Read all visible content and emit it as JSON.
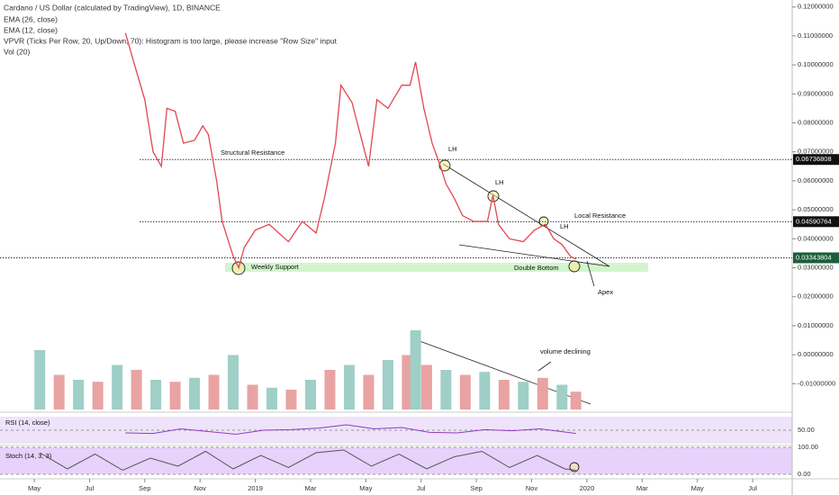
{
  "header": [
    "Cardano / US Dollar (calculated by TradingView), 1D, BINANCE",
    "EMA (26, close)",
    "EMA (12, close)",
    "VPVR (Ticks Per Row, 20, Up/Down, 70): Histogram is too large, please increase \"Row Size\" input",
    "Vol (20)"
  ],
  "chart_data": {
    "type": "line",
    "x": [
      3.3,
      3.6,
      4.0,
      4.3,
      4.6,
      4.8,
      5.1,
      5.4,
      5.8,
      6.1,
      6.3,
      6.6,
      6.8,
      7.2,
      7.4,
      7.6,
      8.0,
      8.5,
      9.2,
      9.7,
      10.2,
      10.5,
      10.9,
      11.1,
      11.5,
      11.8,
      12.1,
      12.4,
      12.8,
      13.3,
      13.6,
      13.8,
      14.1,
      14.4,
      14.7,
      14.9,
      15.2,
      15.5,
      15.9,
      16.4,
      16.6,
      16.8,
      17.2,
      17.7,
      18.1,
      18.5,
      18.8,
      19.1,
      19.4,
      19.6
    ],
    "series": [
      {
        "color": "#e0484f",
        "values": [
          0.111,
          0.101,
          0.088,
          0.07,
          0.065,
          0.085,
          0.084,
          0.073,
          0.074,
          0.079,
          0.076,
          0.06,
          0.046,
          0.034,
          0.03,
          0.037,
          0.043,
          0.045,
          0.039,
          0.046,
          0.042,
          0.054,
          0.073,
          0.093,
          0.087,
          0.076,
          0.065,
          0.088,
          0.085,
          0.093,
          0.093,
          0.101,
          0.085,
          0.073,
          0.065,
          0.059,
          0.054,
          0.048,
          0.046,
          0.046,
          0.055,
          0.045,
          0.04,
          0.039,
          0.043,
          0.045,
          0.04,
          0.038,
          0.034,
          0.033
        ]
      }
    ],
    "xlim": [
      -1.24,
      27.43
    ],
    "xticks": [
      {
        "value": 0,
        "label": "May"
      },
      {
        "value": 2,
        "label": "Jul"
      },
      {
        "value": 4,
        "label": "Sep"
      },
      {
        "value": 6,
        "label": "Nov"
      },
      {
        "value": 8,
        "label": "2019"
      },
      {
        "value": 10,
        "label": "Mar"
      },
      {
        "value": 12,
        "label": "May"
      },
      {
        "value": 14,
        "label": "Jul"
      },
      {
        "value": 16,
        "label": "Sep"
      },
      {
        "value": 18,
        "label": "Nov"
      },
      {
        "value": 20,
        "label": "2020"
      },
      {
        "value": 22,
        "label": "Mar"
      },
      {
        "value": 24,
        "label": "May"
      },
      {
        "value": 26,
        "label": "Jul"
      }
    ],
    "ylim": [
      -0.0189,
      0.1224
    ],
    "yticks": [
      {
        "value": 0.12,
        "label": "0.12000000"
      },
      {
        "value": 0.11,
        "label": "0.11000000"
      },
      {
        "value": 0.1,
        "label": "0.10000000"
      },
      {
        "value": 0.09,
        "label": "0.09000000"
      },
      {
        "value": 0.08,
        "label": "0.08000000"
      },
      {
        "value": 0.07,
        "label": "0.07000000"
      },
      {
        "value": 0.06,
        "label": "0.06000000"
      },
      {
        "value": 0.05,
        "label": "0.05000000"
      },
      {
        "value": 0.04,
        "label": "0.04000000"
      },
      {
        "value": 0.03,
        "label": "0.03000000"
      },
      {
        "value": 0.02,
        "label": "0.02000000"
      },
      {
        "value": 0.01,
        "label": "0.01000000"
      },
      {
        "value": 0,
        "label": "0.00000000"
      },
      {
        "value": -0.01,
        "label": "-0.01000000"
      }
    ],
    "levels": [
      0.06736808,
      0.04590764,
      0.03343804
    ],
    "annotations": [
      "Structural Resistance",
      "LH",
      "LH",
      "LH",
      "Local Resistance",
      "Weekly Support",
      "Double Bottom",
      "Apex",
      "volume declining"
    ],
    "volume": {
      "x": [
        0.2,
        0.9,
        1.6,
        2.3,
        3.0,
        3.7,
        4.4,
        5.1,
        5.8,
        6.5,
        7.2,
        7.9,
        8.6,
        9.3,
        10.0,
        10.7,
        11.4,
        12.1,
        12.8,
        13.5,
        13.8,
        14.2,
        14.9,
        15.6,
        16.3,
        17.0,
        17.7,
        18.4,
        19.1,
        19.6
      ],
      "values": [
        60,
        35,
        30,
        28,
        45,
        40,
        30,
        28,
        32,
        35,
        55,
        25,
        22,
        20,
        30,
        40,
        45,
        35,
        50,
        55,
        80,
        45,
        40,
        35,
        38,
        30,
        28,
        32,
        25,
        18
      ],
      "ylim": [
        0,
        100
      ]
    },
    "rsi": {
      "label": "RSI (14, close)",
      "x": [
        3.3,
        4.3,
        5.3,
        6.3,
        7.3,
        8.3,
        9.3,
        10.3,
        11.3,
        12.3,
        13.3,
        14.3,
        15.3,
        16.3,
        17.3,
        18.3,
        19.6
      ],
      "values": [
        40,
        38,
        55,
        45,
        35,
        50,
        52,
        58,
        70,
        55,
        60,
        42,
        40,
        52,
        48,
        55,
        38
      ],
      "ylim": [
        0,
        100
      ],
      "yticks": [
        {
          "value": 50,
          "label": "50.00"
        }
      ]
    },
    "stoch": {
      "label": "Stoch (14, 3, 3)",
      "x": [
        0.2,
        1.2,
        2.2,
        3.2,
        4.2,
        5.2,
        6.2,
        7.2,
        8.2,
        9.2,
        10.2,
        11.2,
        12.2,
        13.2,
        14.2,
        15.2,
        16.2,
        17.2,
        18.2,
        19.2,
        19.6
      ],
      "values": [
        80,
        20,
        75,
        15,
        60,
        30,
        85,
        20,
        70,
        25,
        80,
        90,
        30,
        75,
        20,
        65,
        85,
        25,
        70,
        20,
        15
      ],
      "ylim": [
        0,
        100
      ],
      "yticks": [
        {
          "value": 100,
          "label": "100.00"
        },
        {
          "value": 0,
          "label": "0.00"
        }
      ]
    }
  }
}
